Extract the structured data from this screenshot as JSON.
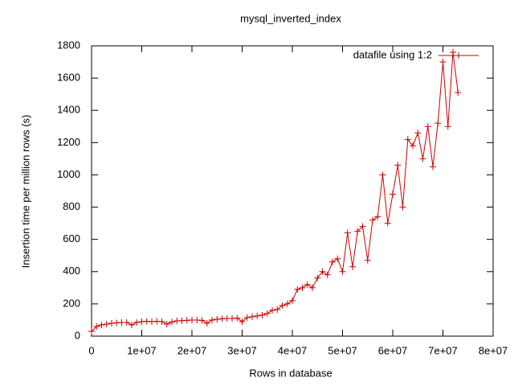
{
  "chart_data": {
    "type": "line",
    "title": "mysql_inverted_index",
    "x_label": "Rows in database",
    "y_label": "Insertion time per million rows (s)",
    "x": [
      0,
      1000000,
      2000000,
      3000000,
      4000000,
      5000000,
      6000000,
      7000000,
      8000000,
      9000000,
      10000000,
      11000000,
      12000000,
      13000000,
      14000000,
      15000000,
      16000000,
      17000000,
      18000000,
      19000000,
      20000000,
      21000000,
      22000000,
      23000000,
      24000000,
      25000000,
      26000000,
      27000000,
      28000000,
      29000000,
      30000000,
      31000000,
      32000000,
      33000000,
      34000000,
      35000000,
      36000000,
      37000000,
      38000000,
      39000000,
      40000000,
      41000000,
      42000000,
      43000000,
      44000000,
      45000000,
      46000000,
      47000000,
      48000000,
      49000000,
      50000000,
      51000000,
      52000000,
      53000000,
      54000000,
      55000000,
      56000000,
      57000000,
      58000000,
      59000000,
      60000000,
      61000000,
      62000000,
      63000000,
      64000000,
      65000000,
      66000000,
      67000000,
      68000000,
      69000000,
      70000000,
      71000000,
      72000000,
      73000000
    ],
    "series": [
      {
        "name": "datafile using 1:2",
        "color": "#cc0000",
        "values": [
          30,
          60,
          70,
          75,
          80,
          82,
          85,
          85,
          70,
          85,
          90,
          92,
          90,
          92,
          90,
          75,
          88,
          95,
          96,
          98,
          100,
          100,
          98,
          80,
          100,
          105,
          108,
          110,
          110,
          112,
          90,
          115,
          120,
          125,
          130,
          140,
          160,
          165,
          190,
          200,
          220,
          290,
          300,
          320,
          300,
          360,
          400,
          380,
          460,
          480,
          400,
          640,
          430,
          650,
          680,
          470,
          720,
          740,
          1000,
          700,
          880,
          1060,
          800,
          1220,
          1180,
          1260,
          1100,
          1300,
          1050,
          1320,
          1700,
          1300,
          1760,
          1510
        ]
      }
    ],
    "xlim": [
      0,
      80000000
    ],
    "ylim": [
      0,
      1800
    ],
    "xticks": [
      0,
      {
        "value": 10000000,
        "label": "1e+07"
      },
      {
        "value": 20000000,
        "label": "2e+07"
      },
      {
        "value": 30000000,
        "label": "3e+07"
      },
      {
        "value": 40000000,
        "label": "4e+07"
      },
      {
        "value": 50000000,
        "label": "5e+07"
      },
      {
        "value": 60000000,
        "label": "6e+07"
      },
      {
        "value": 70000000,
        "label": "7e+07"
      },
      {
        "value": 80000000,
        "label": "8e+07"
      }
    ],
    "yticks": [
      0,
      200,
      400,
      600,
      800,
      1000,
      1200,
      1400,
      1600,
      1800
    ],
    "grid": false,
    "legend": "top-right"
  }
}
